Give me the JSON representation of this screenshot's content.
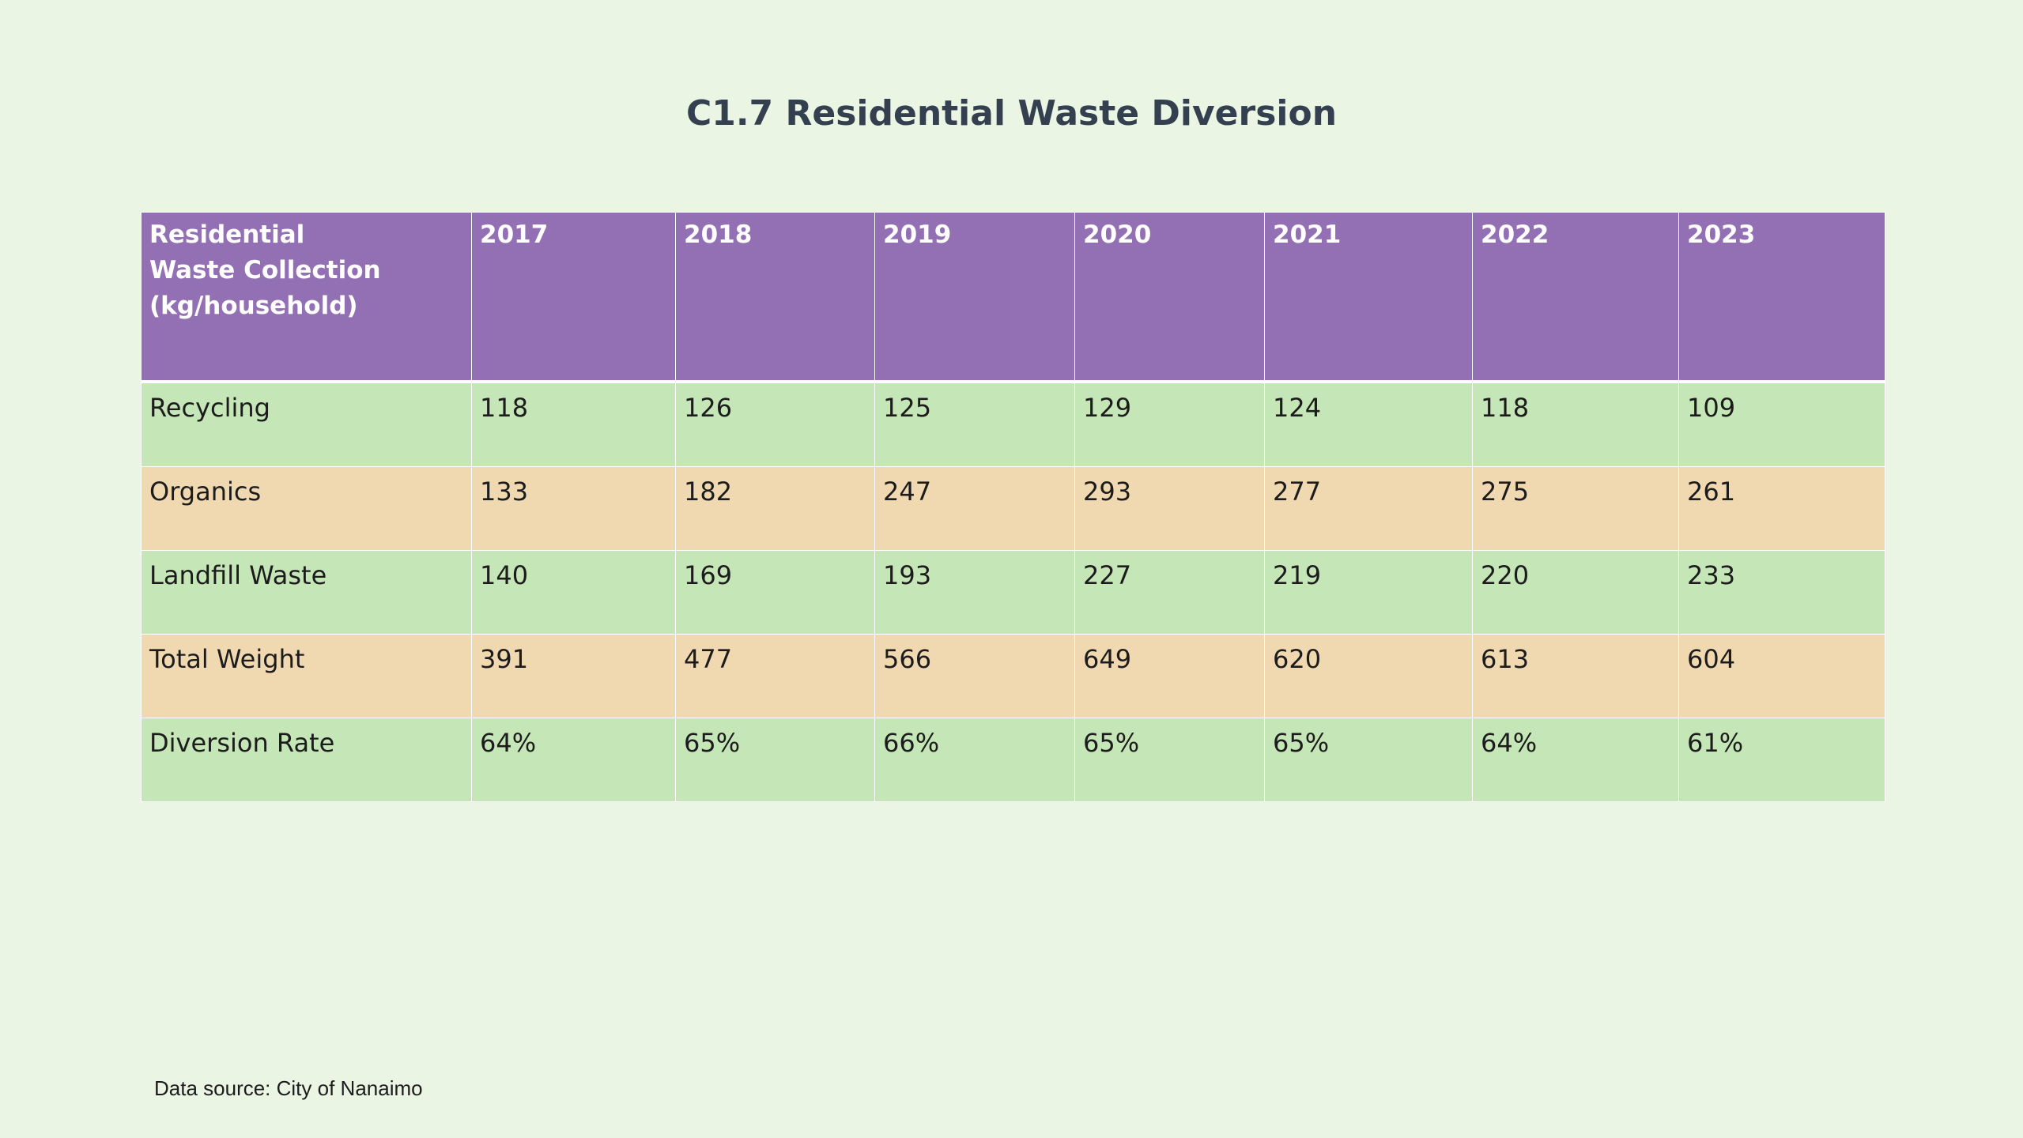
{
  "title": "C1.7 Residential Waste Diversion",
  "source": "Data source: City of Nanaimo",
  "colors": {
    "background": "#eaf5e4",
    "header": "#9370b4",
    "row_green": "#c5e6b6",
    "row_tan": "#f0d8b1",
    "title_text": "#344050"
  },
  "chart_data": {
    "type": "table",
    "title": "C1.7 Residential Waste Diversion",
    "header": {
      "label": "Residential Waste Collection (kg/household)",
      "years": [
        "2017",
        "2018",
        "2019",
        "2020",
        "2021",
        "2022",
        "2023"
      ]
    },
    "rows": [
      {
        "label": "Recycling",
        "values": [
          "118",
          "126",
          "125",
          "129",
          "124",
          "118",
          "109"
        ]
      },
      {
        "label": "Organics",
        "values": [
          "133",
          "182",
          "247",
          "293",
          "277",
          "275",
          "261"
        ]
      },
      {
        "label": "Landfill Waste",
        "values": [
          "140",
          "169",
          "193",
          "227",
          "219",
          "220",
          "233"
        ]
      },
      {
        "label": "Total Weight",
        "values": [
          "391",
          "477",
          "566",
          "649",
          "620",
          "613",
          "604"
        ]
      },
      {
        "label": "Diversion Rate",
        "values": [
          "64%",
          "65%",
          "66%",
          "65%",
          "65%",
          "64%",
          "61%"
        ]
      }
    ]
  }
}
